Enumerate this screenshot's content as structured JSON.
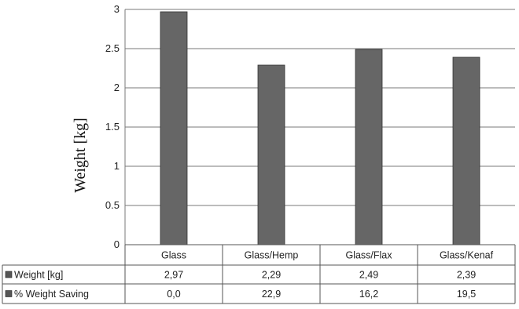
{
  "chart_data": {
    "type": "bar",
    "title": "",
    "xlabel": "",
    "ylabel": "Weight [kg]",
    "ylim": [
      0,
      3
    ],
    "yticks": [
      "0",
      "0.5",
      "1",
      "1.5",
      "2",
      "2.5",
      "3"
    ],
    "grid": true,
    "categories": [
      "Glass",
      "Glass/Hemp",
      "Glass/Flax",
      "Glass/Kenaf"
    ],
    "values": [
      2.97,
      2.29,
      2.49,
      2.39
    ],
    "bar_color": "#666666",
    "data_table": {
      "rows": [
        {
          "label": "Weight [kg]",
          "values": [
            "2,97",
            "2,29",
            "2,49",
            "2,39"
          ]
        },
        {
          "label": "% Weight Saving",
          "values": [
            "0,0",
            "22,9",
            "16,2",
            "19,5"
          ]
        }
      ]
    }
  }
}
